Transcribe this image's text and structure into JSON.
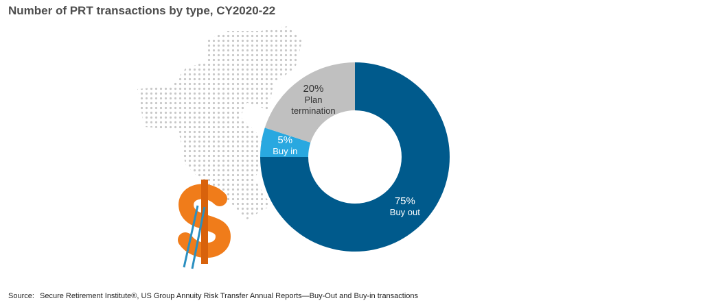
{
  "chart_data": {
    "type": "donut",
    "title": "Number of PRT transactions by type, CY2020-22",
    "categories": [
      "Buy out",
      "Buy in",
      "Plan termination"
    ],
    "values": [
      75,
      5,
      20
    ],
    "value_labels": [
      "75%",
      "5%",
      "20%"
    ],
    "colors": [
      "#005a8c",
      "#29a8e0",
      "#c0c0c0"
    ],
    "label_colors": [
      "#ffffff",
      "#ffffff",
      "#333333"
    ],
    "source_label": "Source:",
    "source": "Secure Retirement Institute®, US Group Annuity Risk Transfer Annual Reports—Buy-Out and Buy-in transactions"
  }
}
